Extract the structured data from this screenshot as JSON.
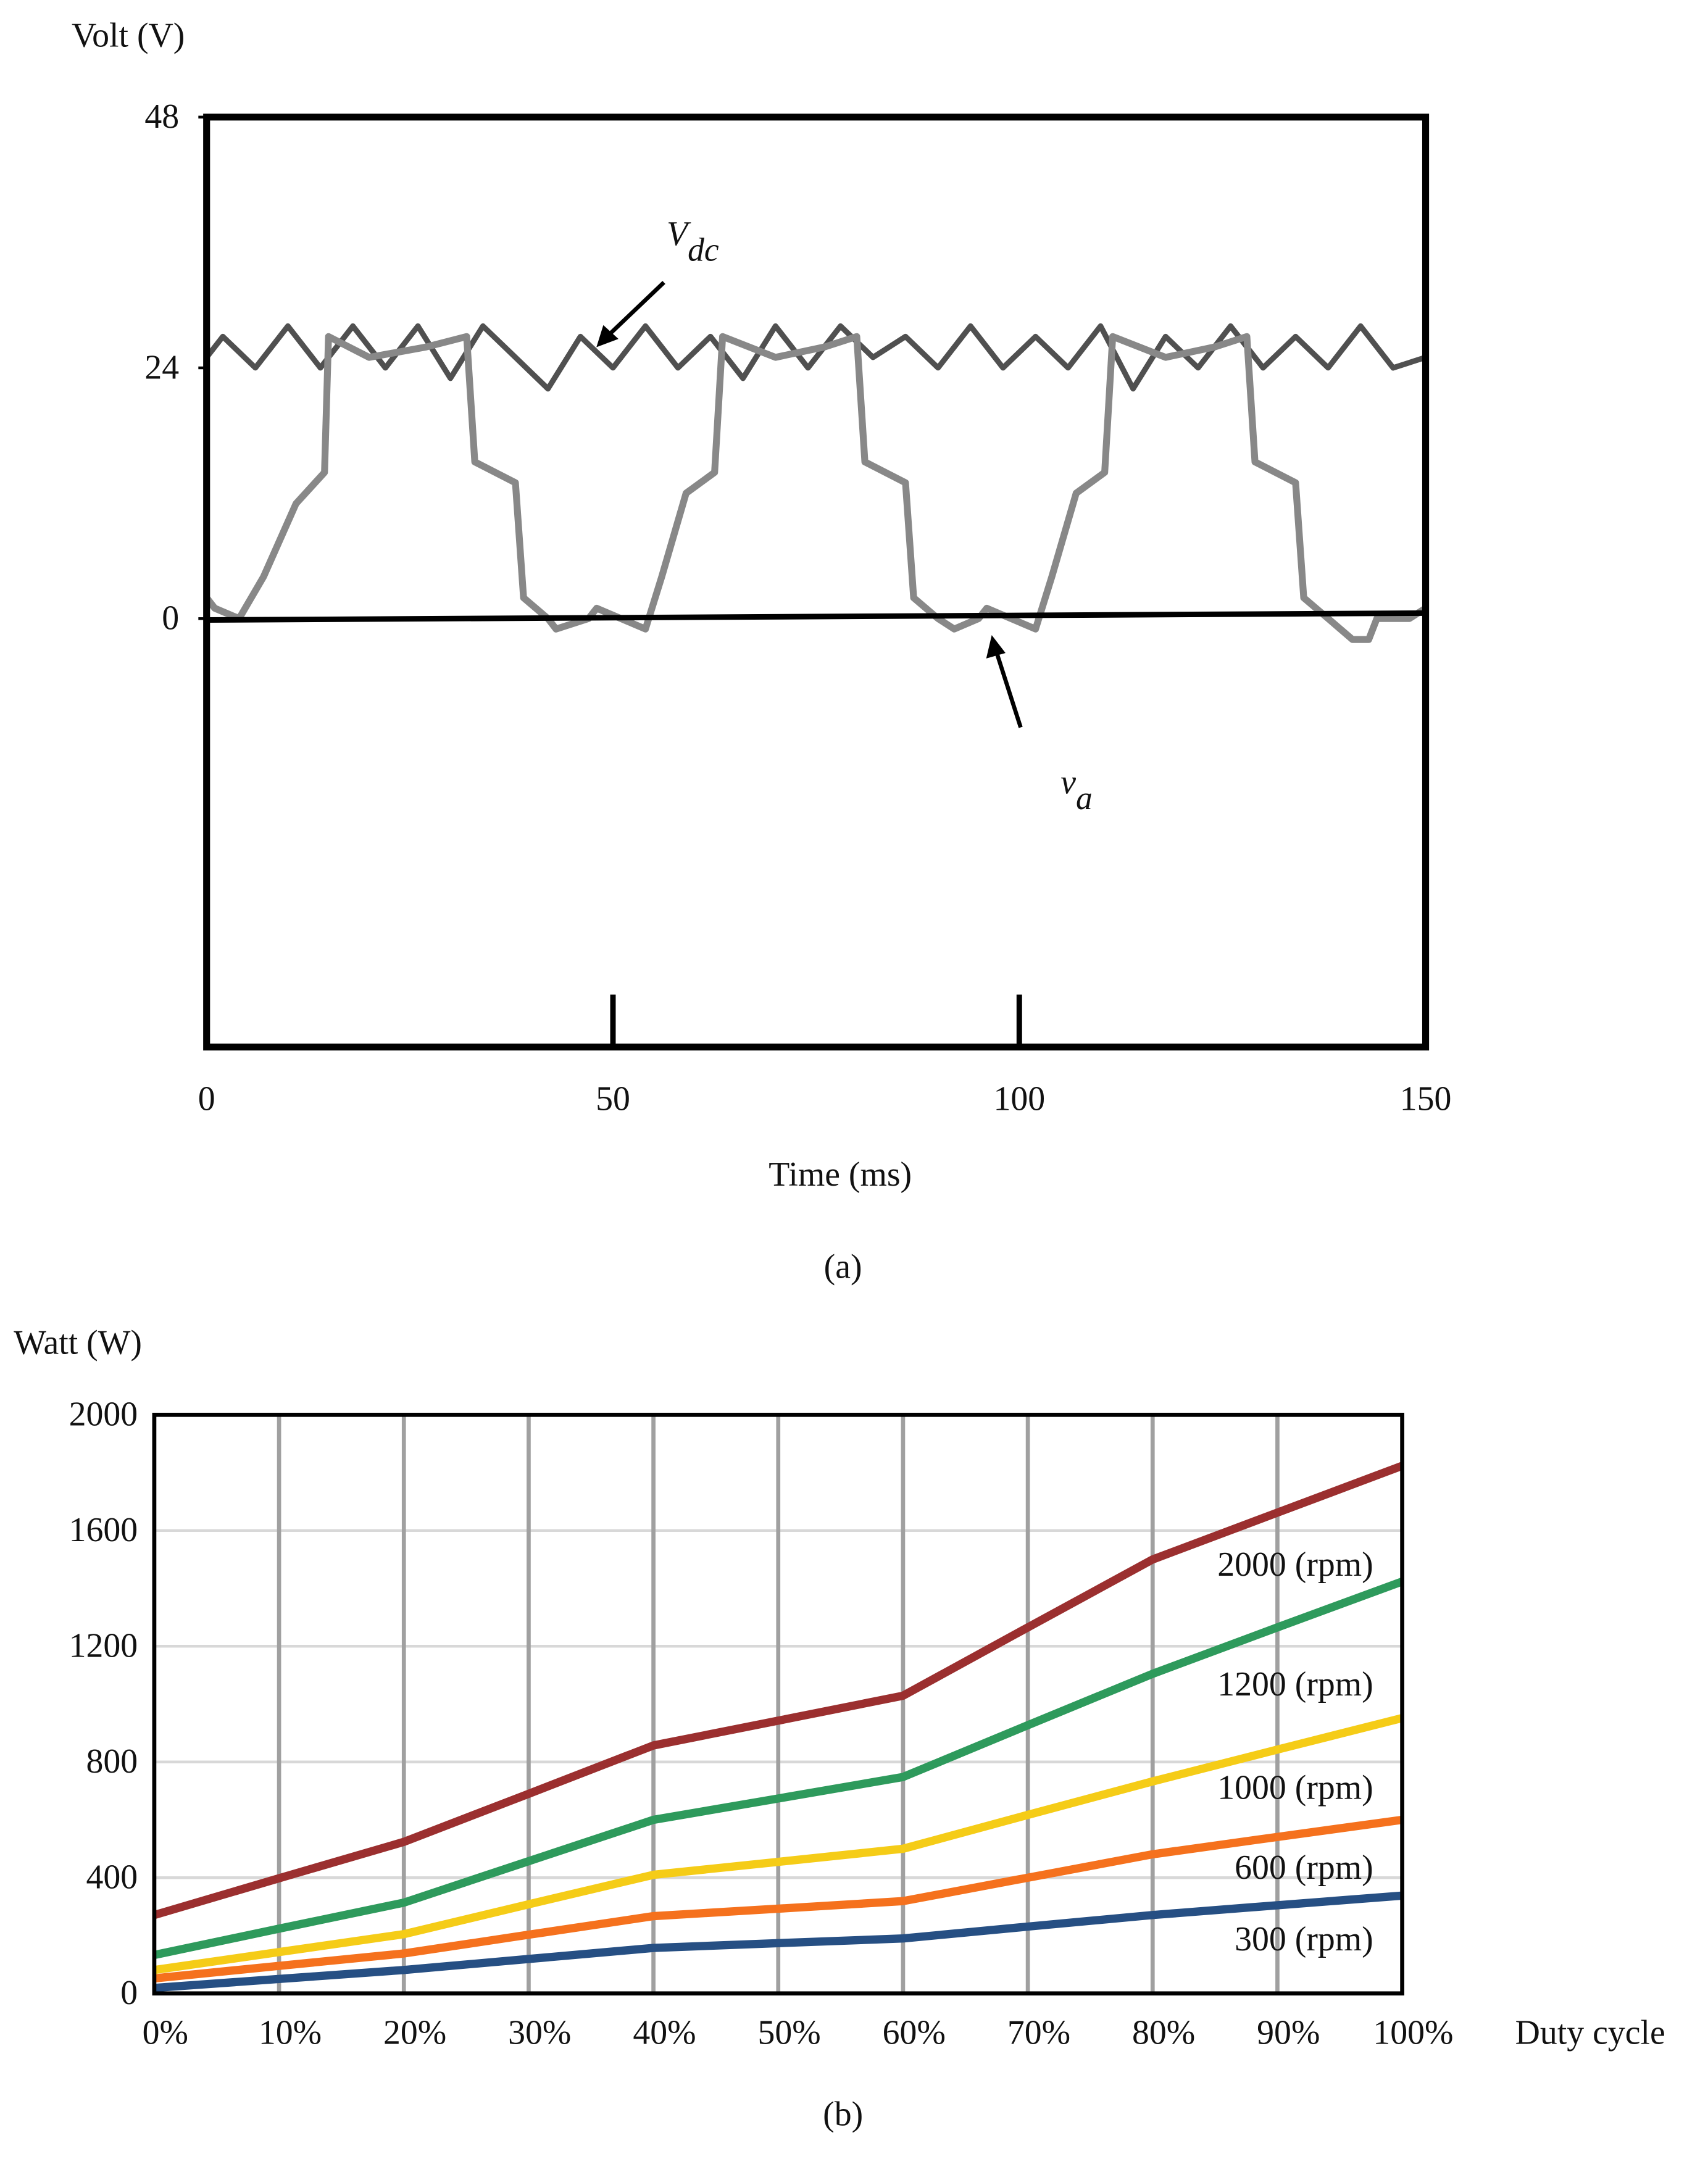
{
  "chart_data": [
    {
      "type": "line",
      "caption": "(a)",
      "ylabel": "Volt (V)",
      "xlabel": "Time (ms)",
      "xlim": [
        0,
        150
      ],
      "xticks": [
        0,
        50,
        100,
        150
      ],
      "ylim": [
        -41,
        48
      ],
      "yticks": [
        0,
        24,
        48
      ],
      "annotations": [
        {
          "text": "V",
          "sub": "dc"
        },
        {
          "text": "v",
          "sub": "a"
        }
      ],
      "series": [
        {
          "name": "Vdc",
          "color": "#505050",
          "x": [
            0,
            2,
            6,
            10,
            14,
            18,
            22,
            26,
            30,
            34,
            38,
            42,
            46,
            50,
            54,
            58,
            62,
            66,
            70,
            74,
            78,
            82,
            86,
            90,
            94,
            98,
            102,
            106,
            110,
            114,
            118,
            122,
            126,
            130,
            134,
            138,
            142,
            146,
            150
          ],
          "values": [
            25,
            27,
            24,
            28,
            24,
            28,
            24,
            28,
            23,
            28,
            25,
            22,
            27,
            24,
            28,
            24,
            27,
            23,
            28,
            24,
            28,
            25,
            27,
            24,
            28,
            24,
            27,
            24,
            28,
            22,
            27,
            24,
            28,
            24,
            27,
            24,
            28,
            24,
            25
          ]
        },
        {
          "name": "va",
          "color": "#888888",
          "x": [
            0,
            1,
            4,
            7,
            11,
            14.5,
            15,
            20,
            27,
            32,
            33,
            38,
            39,
            42,
            43,
            47,
            48,
            54,
            56,
            59,
            62.5,
            63.5,
            70,
            76,
            80,
            81,
            86,
            87,
            90,
            92,
            95,
            96,
            102,
            104,
            107,
            110.5,
            111.5,
            118,
            124,
            128,
            129,
            134,
            135,
            138,
            141,
            143,
            144,
            148,
            150
          ],
          "values": [
            2,
            1,
            0,
            4,
            11,
            14,
            27,
            25,
            26,
            27,
            15,
            13,
            2,
            0,
            -1,
            0,
            1,
            -1,
            4,
            12,
            14,
            27,
            25,
            26,
            27,
            15,
            13,
            2,
            0,
            -1,
            0,
            1,
            -1,
            4,
            12,
            14,
            27,
            25,
            26,
            27,
            15,
            13,
            2,
            0,
            -2,
            -2,
            0,
            0,
            1
          ]
        }
      ]
    },
    {
      "type": "line",
      "caption": "(b)",
      "ylabel": "Watt (W)",
      "xlabel": "Duty cycle",
      "categories": [
        "0%",
        "10%",
        "20%",
        "30%",
        "40%",
        "50%",
        "60%",
        "70%",
        "80%",
        "90%",
        "100%"
      ],
      "ylim": [
        0,
        2000
      ],
      "yticks": [
        0,
        400,
        800,
        1200,
        1600,
        2000
      ],
      "grid": true,
      "series": [
        {
          "name": "2000 (rpm)",
          "color": "#9b2f2f",
          "values": [
            271,
            398,
            524,
            690,
            857,
            943,
            1029,
            1265,
            1500,
            1662,
            1824
          ]
        },
        {
          "name": "1200 (rpm)",
          "color": "#2e9a5c",
          "values": [
            133,
            224,
            314,
            457,
            600,
            674,
            748,
            927,
            1105,
            1265,
            1424
          ]
        },
        {
          "name": "1000 (rpm)",
          "color": "#f5cc17",
          "values": [
            81,
            143,
            205,
            308,
            410,
            455,
            500,
            617,
            733,
            843,
            952
          ]
        },
        {
          "name": "600 (rpm)",
          "color": "#f5711d",
          "values": [
            52,
            95,
            138,
            203,
            267,
            293,
            319,
            400,
            481,
            541,
            600
          ]
        },
        {
          "name": "300 (rpm)",
          "color": "#264f83",
          "values": [
            19,
            50,
            81,
            119,
            157,
            174,
            190,
            231,
            271,
            305,
            338
          ]
        }
      ]
    }
  ]
}
